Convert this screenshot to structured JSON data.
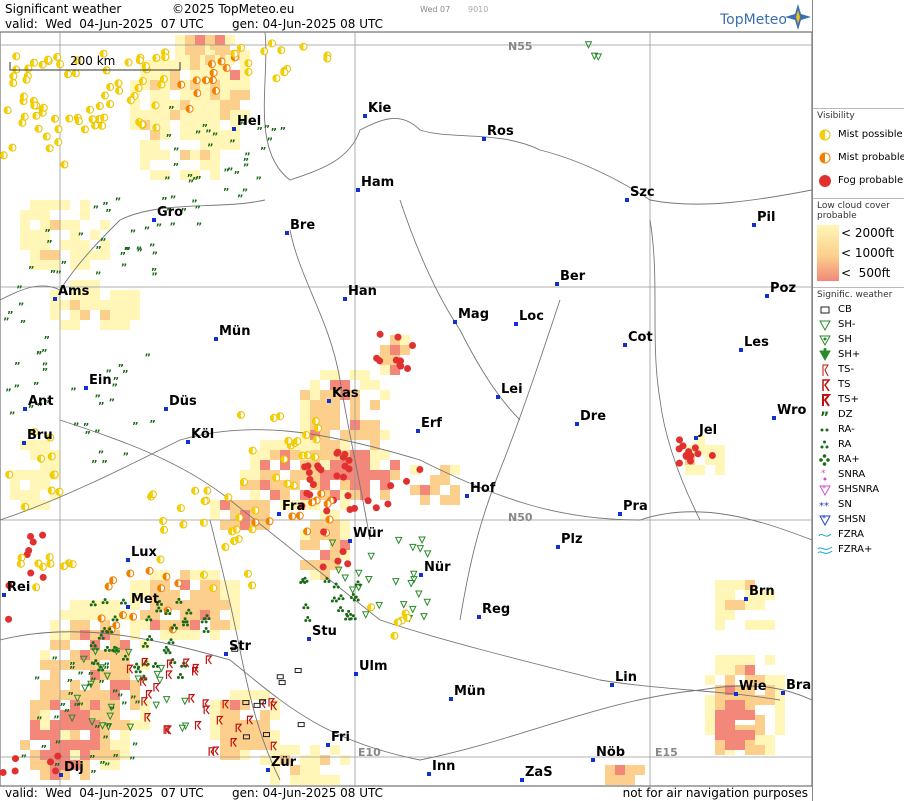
{
  "header": {
    "title": "Significant weather",
    "copyright": "©2025 TopMeteo.eu",
    "valid": "valid:  Wed  04-Jun-2025  07 UTC",
    "generated": "gen: 04-Jun-2025 08 UTC",
    "day": "Wed 07",
    "code": "9010",
    "logo": "TopMeteo"
  },
  "map": {
    "scale": "200 km",
    "grid_labels": [
      "N55",
      "N50",
      "E10",
      "E15"
    ],
    "cities": [
      "Kie",
      "Ros",
      "Hel",
      "Ham",
      "Szc",
      "Gro",
      "Bre",
      "Pil",
      "Ber",
      "Poz",
      "Ams",
      "Han",
      "Mag",
      "Loc",
      "Mün",
      "Cot",
      "Les",
      "Ein",
      "Kas",
      "Lei",
      "Ant",
      "Düs",
      "Wro",
      "Dre",
      "Erf",
      "Jel",
      "Bru",
      "Köl",
      "Hof",
      "Fra",
      "Pra",
      "Wür",
      "Plz",
      "Lux",
      "Nür",
      "Rei",
      "Brn",
      "Met",
      "Reg",
      "Stu",
      "Str",
      "Ulm",
      "Lin",
      "Wie",
      "Bra",
      "Mün",
      "Fri",
      "Nöb",
      "Zür",
      "Inn",
      "ZaS",
      "Dij"
    ]
  },
  "legend": {
    "visibility": {
      "title": "Visibility",
      "items": [
        "Mist possible",
        "Mist probable",
        "Fog probable"
      ]
    },
    "low_cloud": {
      "title": "Low cloud cover probable",
      "items": [
        "< 2000ft",
        "< 1000ft",
        "<  500ft"
      ]
    },
    "weather": {
      "title": "Signific. weather",
      "items": [
        "CB",
        "SH-",
        "SH",
        "SH+",
        "TS-",
        "TS",
        "TS+",
        "DZ",
        "RA-",
        "RA",
        "RA+",
        "SNRA",
        "SHSNRA",
        "SN",
        "SHSN",
        "FZRA",
        "FZRA+"
      ]
    }
  },
  "footer": {
    "valid": "valid:  Wed  04-Jun-2025  07 UTC",
    "generated": "gen: 04-Jun-2025 08 UTC",
    "note": "not for air navigation purposes"
  }
}
